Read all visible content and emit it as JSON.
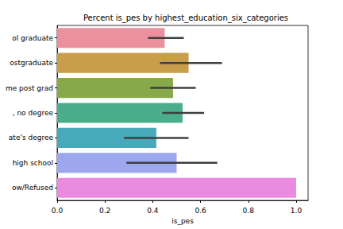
{
  "chart_data": {
    "type": "bar",
    "orientation": "horizontal",
    "title": "Percent is_pes by highest_education_six_categories",
    "x_label": "is_pes",
    "categories": [
      "ol graduate",
      "ostgraduate",
      "me post grad",
      ", no degree",
      "ate's degree",
      "high school",
      "ow/Refused"
    ],
    "values": [
      0.45,
      0.55,
      0.485,
      0.525,
      0.415,
      0.5,
      1.0
    ],
    "errors": [
      [
        0.38,
        0.53
      ],
      [
        0.43,
        0.69
      ],
      [
        0.39,
        0.58
      ],
      [
        0.44,
        0.615
      ],
      [
        0.28,
        0.55
      ],
      [
        0.29,
        0.67
      ],
      null
    ],
    "colors": [
      "#eb909e",
      "#c89e4a",
      "#88a94a",
      "#4aae8c",
      "#47a9ba",
      "#9da7ee",
      "#eb8be0"
    ],
    "xlim": [
      0,
      1.05
    ],
    "xticks": [
      {
        "value": 0,
        "label": "0.0"
      },
      {
        "value": 0.2,
        "label": "0.2"
      },
      {
        "value": 0.4,
        "label": "0.4"
      },
      {
        "value": 0.6,
        "label": "0.6"
      },
      {
        "value": 0.8,
        "label": "0.8"
      },
      {
        "value": 1,
        "label": "1.0"
      }
    ],
    "grid": false
  }
}
